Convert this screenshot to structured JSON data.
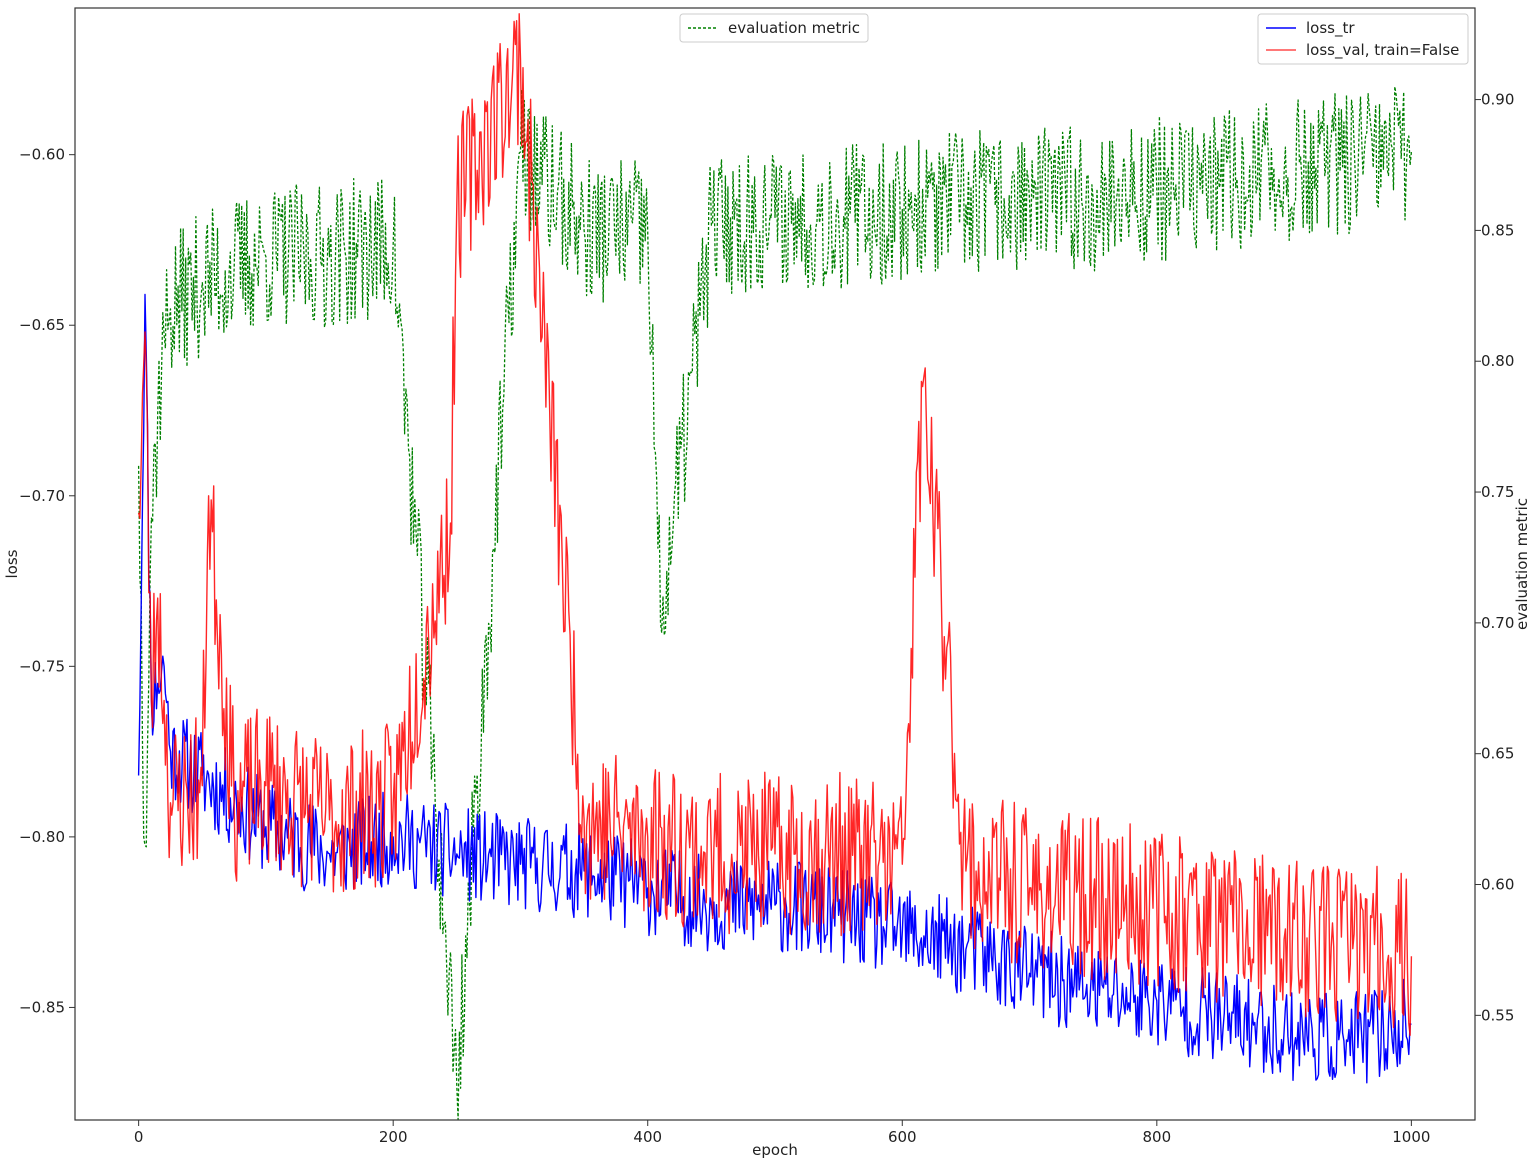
{
  "chart_data": {
    "type": "line",
    "xlabel": "epoch",
    "ylabel_left": "loss",
    "ylabel_right": "evaluation metric",
    "xlim": [
      -50,
      1050
    ],
    "ylim_left": [
      -0.883,
      -0.557
    ],
    "ylim_right": [
      0.51,
      0.935
    ],
    "x_ticks": [
      0,
      200,
      400,
      600,
      800,
      1000
    ],
    "y_ticks_left": [
      -0.85,
      -0.8,
      -0.75,
      -0.7,
      -0.65,
      -0.6
    ],
    "y_ticks_right": [
      0.55,
      0.6,
      0.65,
      0.7,
      0.75,
      0.8,
      0.85,
      0.9
    ],
    "x_tick_labels": [
      "0",
      "200",
      "400",
      "600",
      "800",
      "1000"
    ],
    "y_tick_labels_left": [
      "−0.85",
      "−0.80",
      "−0.75",
      "−0.70",
      "−0.65",
      "−0.60"
    ],
    "y_tick_labels_right": [
      "0.55",
      "0.60",
      "0.65",
      "0.70",
      "0.75",
      "0.80",
      "0.85",
      "0.90"
    ],
    "legend_right": {
      "placement": "top-right",
      "entries": [
        "loss_tr",
        "loss_val, train=False"
      ]
    },
    "legend_center": {
      "placement": "top-center",
      "entries": [
        "evaluation metric"
      ]
    },
    "series": [
      {
        "name": "loss_tr",
        "axis": "left",
        "color": "#0000ff",
        "style": "solid",
        "x": [
          0,
          5,
          10,
          15,
          20,
          25,
          50,
          75,
          100,
          150,
          200,
          250,
          300,
          350,
          400,
          450,
          500,
          550,
          600,
          650,
          700,
          750,
          800,
          850,
          900,
          950,
          1000
        ],
        "y": [
          -0.782,
          -0.641,
          -0.76,
          -0.755,
          -0.75,
          -0.775,
          -0.782,
          -0.79,
          -0.797,
          -0.805,
          -0.8,
          -0.805,
          -0.808,
          -0.81,
          -0.815,
          -0.82,
          -0.82,
          -0.823,
          -0.828,
          -0.833,
          -0.84,
          -0.845,
          -0.848,
          -0.853,
          -0.857,
          -0.86,
          -0.855
        ]
      },
      {
        "name": "loss_val, train=False",
        "axis": "left",
        "color": "#ff0000",
        "style": "solid",
        "x": [
          0,
          5,
          10,
          15,
          20,
          25,
          50,
          55,
          75,
          100,
          150,
          200,
          245,
          250,
          300,
          350,
          400,
          450,
          500,
          550,
          600,
          616,
          650,
          700,
          750,
          800,
          850,
          900,
          950,
          1000
        ],
        "y": [
          -0.705,
          -0.652,
          -0.76,
          -0.73,
          -0.76,
          -0.79,
          -0.785,
          -0.7,
          -0.79,
          -0.785,
          -0.795,
          -0.79,
          -0.708,
          -0.615,
          -0.572,
          -0.795,
          -0.8,
          -0.805,
          -0.805,
          -0.805,
          -0.808,
          -0.668,
          -0.81,
          -0.815,
          -0.818,
          -0.82,
          -0.825,
          -0.83,
          -0.83,
          -0.835
        ]
      },
      {
        "name": "evaluation metric",
        "axis": "right",
        "color": "#008000",
        "style": "dashed",
        "x": [
          0,
          5,
          10,
          15,
          20,
          25,
          50,
          75,
          100,
          150,
          200,
          250,
          300,
          350,
          400,
          410,
          450,
          500,
          550,
          600,
          650,
          700,
          750,
          800,
          850,
          900,
          950,
          1000
        ],
        "y": [
          0.76,
          0.615,
          0.74,
          0.78,
          0.81,
          0.82,
          0.83,
          0.835,
          0.84,
          0.84,
          0.845,
          0.523,
          0.88,
          0.85,
          0.85,
          0.7,
          0.852,
          0.855,
          0.855,
          0.858,
          0.86,
          0.862,
          0.862,
          0.866,
          0.868,
          0.872,
          0.875,
          0.88
        ]
      }
    ]
  }
}
